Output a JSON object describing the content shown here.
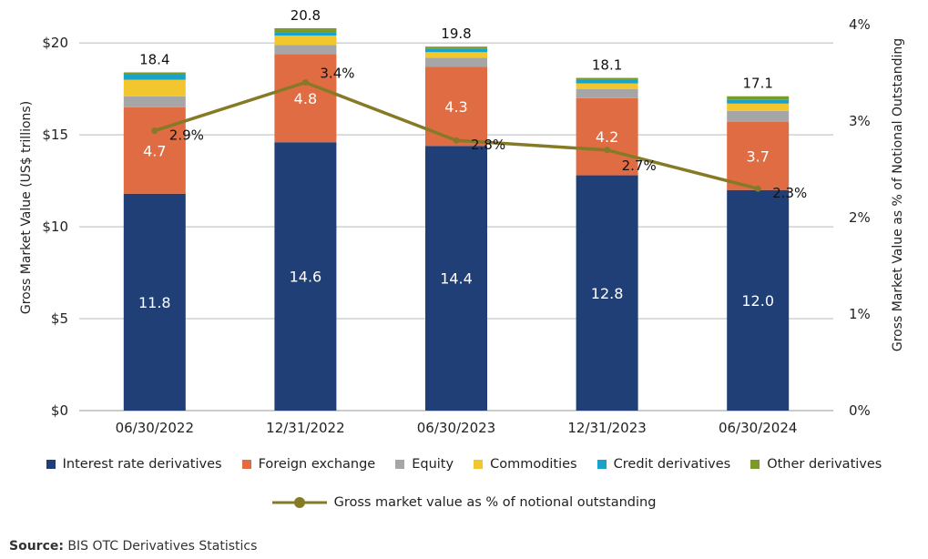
{
  "chart_data": {
    "type": "bar",
    "stacked": true,
    "categories": [
      "06/30/2022",
      "12/31/2022",
      "06/30/2023",
      "12/31/2023",
      "06/30/2024"
    ],
    "series": [
      {
        "name": "Interest rate derivatives",
        "color": "#213f77",
        "values": [
          11.8,
          14.6,
          14.4,
          12.8,
          12.0
        ],
        "labels": [
          "11.8",
          "14.6",
          "14.4",
          "12.8",
          "12.0"
        ]
      },
      {
        "name": "Foreign exchange",
        "color": "#e06c43",
        "values": [
          4.7,
          4.8,
          4.3,
          4.2,
          3.7
        ],
        "labels": [
          "4.7",
          "4.8",
          "4.3",
          "4.2",
          "3.7"
        ]
      },
      {
        "name": "Equity",
        "color": "#a6a6a6",
        "values": [
          0.6,
          0.5,
          0.5,
          0.5,
          0.6
        ]
      },
      {
        "name": "Commodities",
        "color": "#f2c62f",
        "values": [
          0.9,
          0.5,
          0.3,
          0.3,
          0.4
        ]
      },
      {
        "name": "Credit derivatives",
        "color": "#1aa3c9",
        "values": [
          0.3,
          0.2,
          0.2,
          0.2,
          0.2
        ]
      },
      {
        "name": "Other derivatives",
        "color": "#7a9a2a",
        "values": [
          0.1,
          0.2,
          0.1,
          0.1,
          0.2
        ]
      }
    ],
    "totals": [
      "18.4",
      "20.8",
      "19.8",
      "18.1",
      "17.1"
    ],
    "line": {
      "name": "Gross market value as % of notional outstanding",
      "color": "#857a26",
      "values": [
        2.9,
        3.4,
        2.8,
        2.7,
        2.3
      ],
      "labels": [
        "2.9%",
        "3.4%",
        "2.8%",
        "2.7%",
        "2.3%"
      ]
    },
    "ylabel": "Gross Market Value (US$ trillions)",
    "y2label": "Gross Market Value as % of Notional Outstanding",
    "ylim": [
      0,
      21
    ],
    "y2lim": [
      0,
      4
    ],
    "yticks": [
      {
        "v": 0,
        "t": "$0"
      },
      {
        "v": 5,
        "t": "$5"
      },
      {
        "v": 10,
        "t": "$10"
      },
      {
        "v": 15,
        "t": "$15"
      },
      {
        "v": 20,
        "t": "$20"
      }
    ],
    "y2ticks": [
      {
        "v": 0,
        "t": "0%"
      },
      {
        "v": 1,
        "t": "1%"
      },
      {
        "v": 2,
        "t": "2%"
      },
      {
        "v": 3,
        "t": "3%"
      },
      {
        "v": 4,
        "t": "4%"
      }
    ],
    "grid": true,
    "legend": "bottom"
  },
  "source": {
    "label": "Source:",
    "text": " BIS OTC Derivatives Statistics"
  }
}
